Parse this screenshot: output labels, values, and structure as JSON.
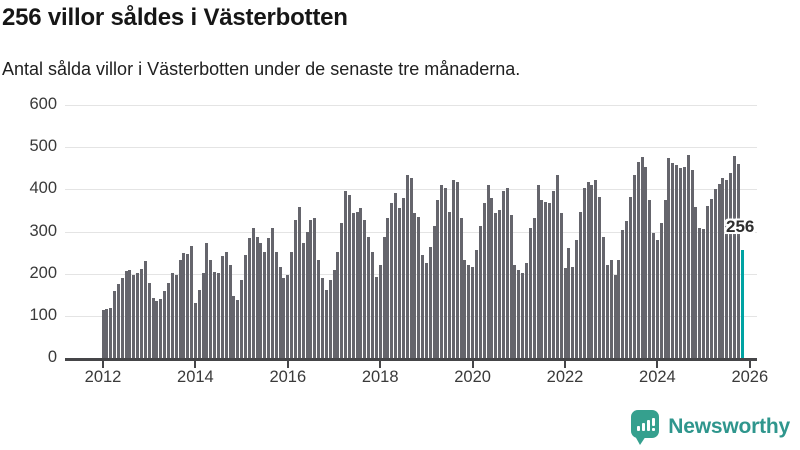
{
  "header": {
    "title": "256 villor såldes i Västerbotten",
    "subtitle": "Antal sålda villor i Västerbotten under de senaste tre månaderna."
  },
  "chart_data": {
    "type": "bar",
    "title": "256 villor såldes i Västerbotten",
    "x_axis": {
      "start_year": 2012,
      "months_per_bar": 1,
      "tick_labels": [
        "2012",
        "2014",
        "2016",
        "2018",
        "2020",
        "2022",
        "2024",
        "2026"
      ]
    },
    "y_axis": {
      "ylim": [
        0,
        600
      ],
      "tick_labels": [
        "0",
        "100",
        "200",
        "300",
        "400",
        "500",
        "600"
      ],
      "grid": true
    },
    "bar_color": "#65656c",
    "highlight": {
      "index": 166,
      "value": 256,
      "label": "256",
      "color": "#00a3a3"
    },
    "values": [
      113,
      117,
      119,
      160,
      176,
      191,
      206,
      209,
      196,
      201,
      212,
      229,
      178,
      142,
      136,
      139,
      158,
      178,
      201,
      197,
      233,
      250,
      247,
      266,
      130,
      162,
      201,
      272,
      233,
      205,
      201,
      241,
      252,
      221,
      146,
      138,
      185,
      245,
      284,
      308,
      288,
      272,
      252,
      284,
      308,
      252,
      215,
      190,
      197,
      252,
      328,
      359,
      272,
      300,
      328,
      332,
      233,
      190,
      162,
      185,
      209,
      252,
      320,
      395,
      387,
      343,
      347,
      355,
      328,
      288,
      252,
      193,
      221,
      288,
      332,
      367,
      391,
      355,
      379,
      434,
      426,
      343,
      335,
      245,
      225,
      264,
      312,
      375,
      410,
      403,
      347,
      422,
      418,
      332,
      233,
      221,
      217,
      257,
      312,
      367,
      410,
      379,
      343,
      351,
      395,
      403,
      339,
      221,
      209,
      201,
      225,
      308,
      332,
      410,
      375,
      371,
      367,
      395,
      434,
      343,
      213,
      261,
      217,
      280,
      347,
      403,
      418,
      410,
      422,
      383,
      288,
      221,
      233,
      197,
      233,
      304,
      324,
      383,
      434,
      466,
      477,
      454,
      375,
      297,
      280,
      320,
      375,
      474,
      462,
      458,
      450,
      454,
      482,
      446,
      359,
      308,
      305,
      360,
      378,
      400,
      412,
      428,
      422,
      438,
      480,
      460,
      256
    ]
  },
  "annotation": {
    "last_value_label": "256"
  },
  "footer": {
    "brand": "Newsworthy"
  },
  "colors": {
    "bar": "#65656c",
    "highlight": "#00a3a3",
    "gridline": "#e4e4e4",
    "axis": "#454548",
    "logo_icon": "#35a08e",
    "logo_text": "#2f968d"
  }
}
